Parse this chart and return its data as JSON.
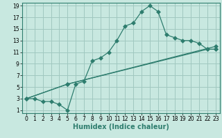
{
  "background_color": "#c8e8e0",
  "grid_color": "#a0c8c0",
  "line_color": "#2e7d6e",
  "xlabel": "Humidex (Indice chaleur)",
  "xlim": [
    -0.5,
    23.5
  ],
  "ylim": [
    0.5,
    19.5
  ],
  "xticks": [
    0,
    1,
    2,
    3,
    4,
    5,
    6,
    7,
    8,
    9,
    10,
    11,
    12,
    13,
    14,
    15,
    16,
    17,
    18,
    19,
    20,
    21,
    22,
    23
  ],
  "yticks": [
    1,
    3,
    5,
    7,
    9,
    11,
    13,
    15,
    17,
    19
  ],
  "line1_x": [
    0,
    1,
    2,
    3,
    4,
    5,
    6,
    7,
    8,
    9,
    10,
    11,
    12,
    13,
    14,
    15,
    16,
    17,
    18,
    19,
    20,
    21,
    22,
    23
  ],
  "line1_y": [
    3,
    3,
    2.5,
    2.5,
    2,
    1,
    5.5,
    6,
    9.5,
    10,
    11,
    13,
    15.5,
    16,
    18,
    19,
    18,
    14,
    13.5,
    13,
    13,
    12.5,
    11.5,
    11.5
  ],
  "line2_x": [
    0,
    5,
    22,
    23
  ],
  "line2_y": [
    3,
    5.5,
    11.5,
    11.5
  ],
  "line3_x": [
    0,
    5,
    23
  ],
  "line3_y": [
    3,
    5.5,
    12
  ],
  "xlabel_fontsize": 7,
  "tick_fontsize": 5.5,
  "linewidth": 0.9,
  "markersize": 3
}
